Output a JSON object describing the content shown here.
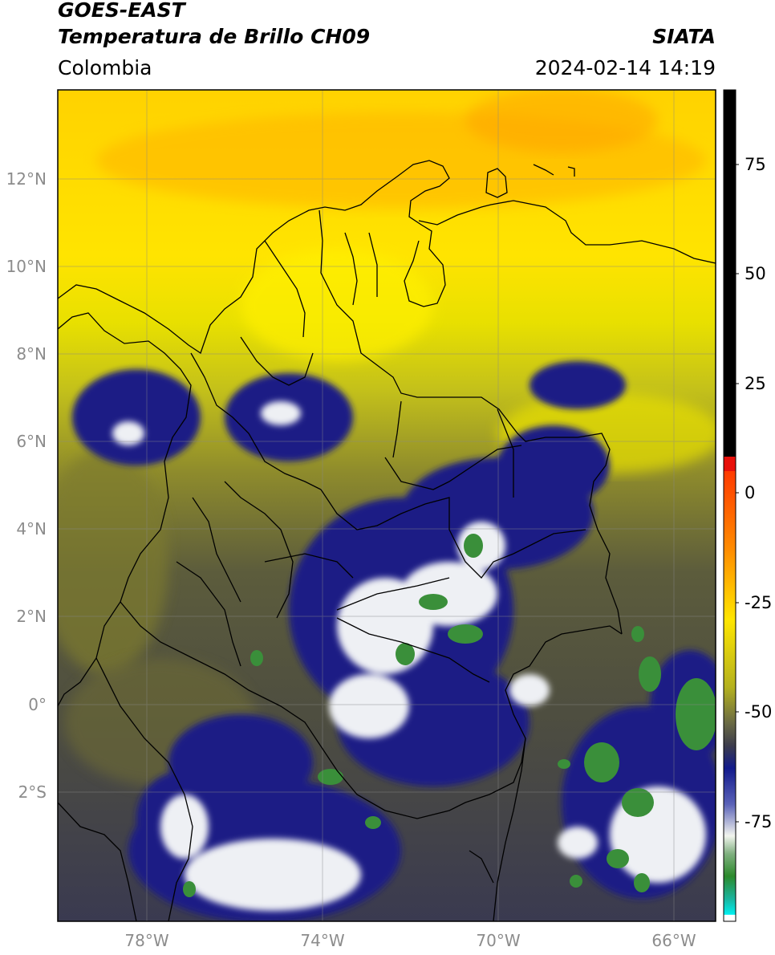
{
  "header": {
    "satellite": "GOES-EAST",
    "product": "Temperatura de Brillo CH09",
    "region": "Colombia",
    "agency": "SIATA",
    "datetime": "2024-02-14 14:19"
  },
  "axes": {
    "lat_labels": [
      "12°N",
      "10°N",
      "8°N",
      "6°N",
      "4°N",
      "2°N",
      "0°",
      "2°S"
    ],
    "lon_labels": [
      "78°W",
      "74°W",
      "70°W",
      "66°W"
    ]
  },
  "colorbar": {
    "ticks": [
      "75",
      "50",
      "25",
      "0",
      "-25",
      "-50",
      "-75"
    ],
    "colors": {
      "black": "#000000",
      "red": "#e8100a",
      "orange": "#ff8800",
      "yellow": "#ffee00",
      "olive": "#7a7a2a",
      "gray": "#3e3e4e",
      "navy": "#151a80",
      "white": "#f4f6f0",
      "green": "#2d8a2d",
      "teal": "#1fb5a0",
      "cyan": "#00f0f0"
    }
  }
}
